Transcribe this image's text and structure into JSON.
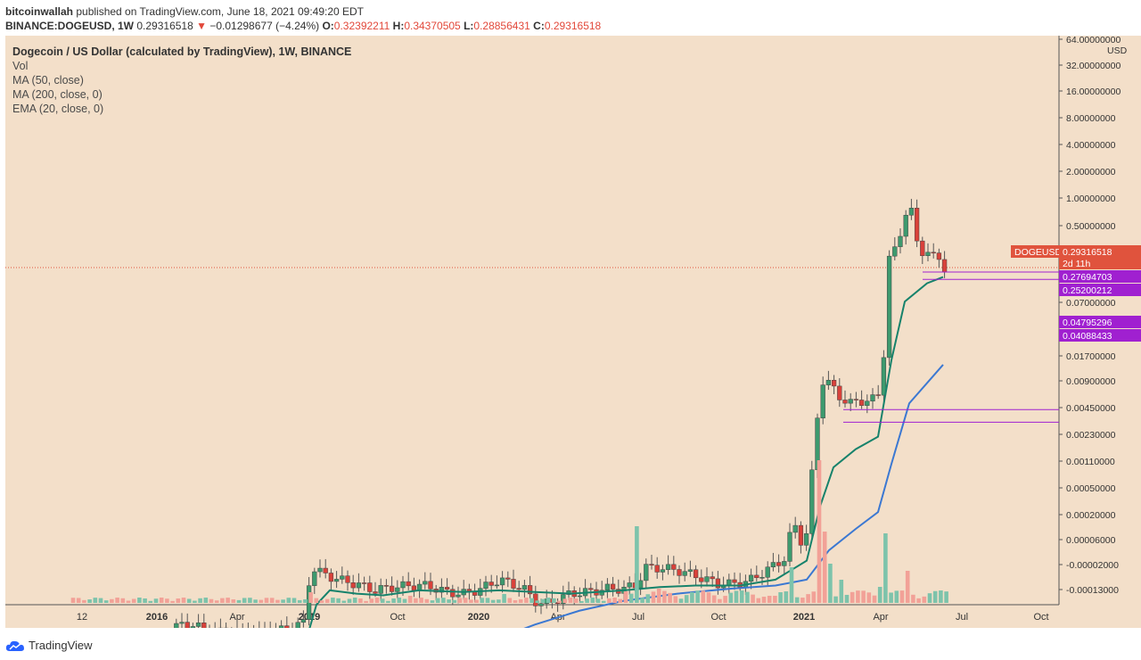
{
  "header": {
    "author": "bitcoinwallah",
    "published_text": " published on TradingView.com, June 18, 2021 09:49:20 EDT",
    "symbol": "BINANCE:DOGEUSD, 1W",
    "last": "0.29316518",
    "arrow": "▼",
    "change": "−0.01298677 (−4.24%)",
    "o_label": "O:",
    "o": "0.32392211",
    "h_label": "H:",
    "h": "0.34370505",
    "l_label": "L:",
    "l": "0.28856431",
    "c_label": "C:",
    "c": "0.29316518"
  },
  "legend": {
    "title": "Dogecoin / US Dollar (calculated by TradingView), 1W, BINANCE",
    "vol": "Vol",
    "ma50": "MA (50, close)",
    "ma200": "MA (200, close, 0)",
    "ema20": "EMA (20, close, 0)"
  },
  "footer": {
    "brand": "TradingView"
  },
  "colors": {
    "background": "#f3dfc9",
    "up": "#3d9a6e",
    "down": "#d9413a",
    "vol_up": "#7dc3ab",
    "vol_down": "#f2a197",
    "ma_teal": "#16826b",
    "ma_blue": "#3b78d2",
    "level_purple": "#a020d0",
    "price_badge": "#e0533d"
  },
  "chart_data": {
    "type": "candlestick",
    "title": "Dogecoin / US Dollar (calculated by TradingView), 1W, BINANCE",
    "ylabel": "USD",
    "y_scale": "log",
    "y_ticks": [
      "64.00000000",
      "32.00000000",
      "16.00000000",
      "8.00000000",
      "4.00000000",
      "2.00000000",
      "1.00000000",
      "0.50000000",
      "0.07000000",
      "0.01700000",
      "0.00900000",
      "0.00450000",
      "0.00230000",
      "0.00110000",
      "0.00050000",
      "0.00020000",
      "0.00006000",
      "-0.00002000",
      "-0.00013000"
    ],
    "x_ticks": [
      "12",
      "2016",
      "Apr",
      "2019",
      "Oct",
      "2020",
      "Apr",
      "Jul",
      "Oct",
      "2021",
      "Apr",
      "Jul",
      "Oct"
    ],
    "x_ticks_bold": [
      "2016",
      "2019",
      "2020",
      "2021"
    ],
    "price_labels": [
      {
        "text": "DOGEUSD",
        "kind": "symbol"
      },
      {
        "text": "0.29316518",
        "kind": "last"
      },
      {
        "text": "2d 11h",
        "kind": "countdown"
      },
      {
        "text": "0.27694703",
        "kind": "level"
      },
      {
        "text": "0.25200212",
        "kind": "level"
      },
      {
        "text": "0.04795296",
        "kind": "level"
      },
      {
        "text": "0.04088433",
        "kind": "level"
      }
    ],
    "last_price": 0.29316518,
    "series": [
      {
        "name": "MA (50, close)",
        "kind": "line"
      },
      {
        "name": "MA (200, close, 0)",
        "kind": "line"
      },
      {
        "name": "EMA (20, close, 0)",
        "kind": "line"
      },
      {
        "name": "Vol",
        "kind": "histogram"
      }
    ]
  }
}
